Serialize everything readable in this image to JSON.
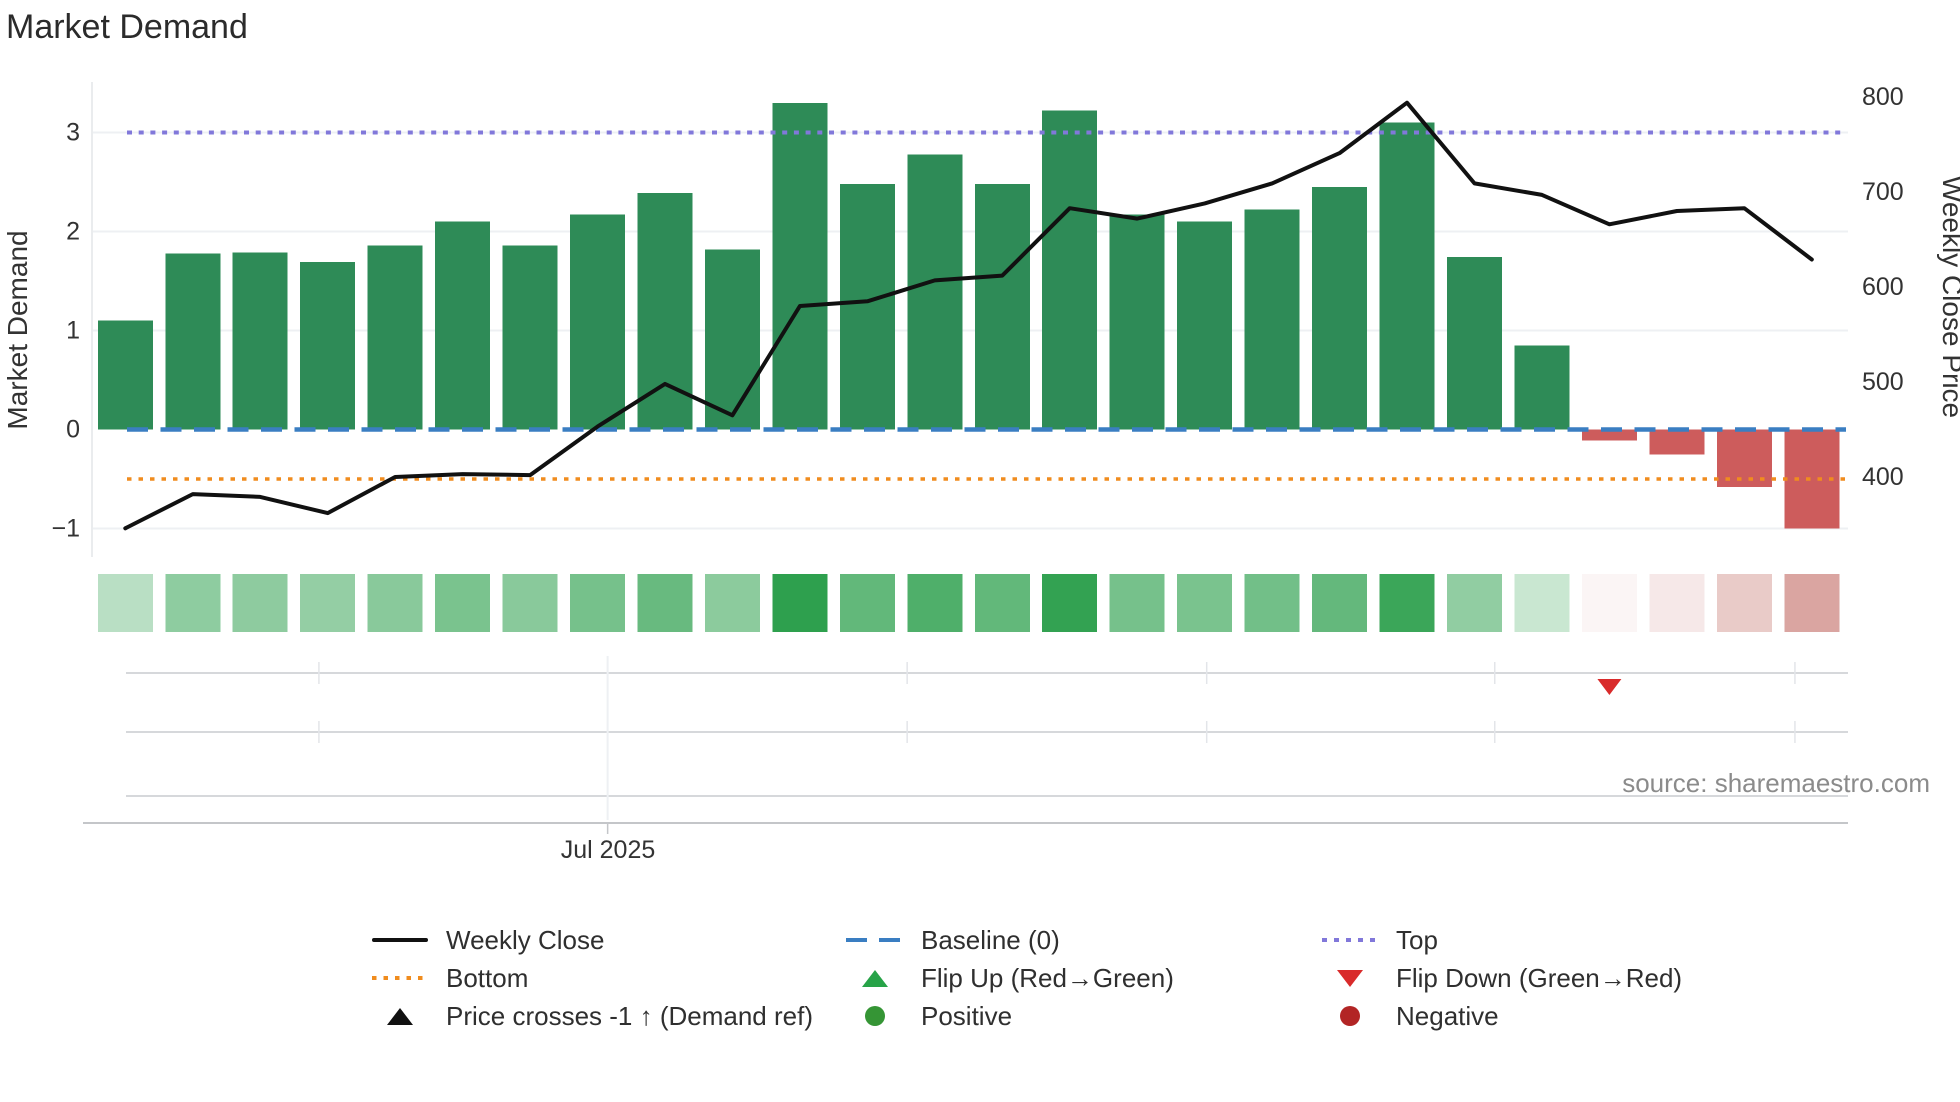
{
  "title": "Market Demand",
  "y_left": {
    "title": "Market Demand",
    "tick_labels": [
      "3",
      "2",
      "1",
      "0",
      "−1"
    ],
    "tick_values": [
      3,
      2,
      1,
      0,
      -1
    ]
  },
  "y_right": {
    "title": "Weekly Close Price",
    "tick_labels": [
      "800",
      "700",
      "600",
      "500",
      "400"
    ],
    "tick_values": [
      800,
      700,
      600,
      500,
      400
    ]
  },
  "x_axis": {
    "tick_label": "Jul 2025"
  },
  "source": "source: sharemaestro.com",
  "legend": {
    "items": [
      {
        "label": "Weekly Close",
        "symbol": "black-line"
      },
      {
        "label": "Bottom",
        "symbol": "orange-dotted-line"
      },
      {
        "label": "Price crosses -1 ↑ (Demand ref)",
        "symbol": "black-up-triangle"
      },
      {
        "label": "Baseline (0)",
        "symbol": "blue-dashed-line"
      },
      {
        "label": "Flip Up (Red→Green)",
        "symbol": "green-up-triangle"
      },
      {
        "label": "Positive",
        "symbol": "green-circle"
      },
      {
        "label": "Top",
        "symbol": "purple-dotted-line"
      },
      {
        "label": "Flip Down (Green→Red)",
        "symbol": "red-down-triangle"
      },
      {
        "label": "Negative",
        "symbol": "dark-red-circle"
      }
    ]
  },
  "colors": {
    "bar_positive": "#2e8b57",
    "bar_negative": "#cd5c5c",
    "price_line": "#111111",
    "baseline_line": "#3a7ec2",
    "top_line": "#8178da",
    "bottom_line": "#f08c1e",
    "flip_down_marker": "#d92b2b",
    "heat_green": "#2ea04e",
    "heat_red": "#b44a43",
    "grid": "#eef0f3",
    "panel_line": "#d6d8db",
    "axis_line": "#c4c6c9",
    "tick_text": "#333333",
    "title_text": "#2b2b2b",
    "source_text": "#8b8b8b"
  },
  "chart_data": {
    "type": "bar+line combo with heatmap strip and marker panel",
    "x": {
      "unit": "week",
      "n_points": 26,
      "visible_tick_label": "Jul 2025",
      "month_tick_week_positions": [
        2.87,
        7.15,
        11.59,
        16.03,
        20.3,
        24.75
      ],
      "labeled_month_tick_index": 1
    },
    "series": [
      {
        "name": "Market Demand",
        "type": "bar",
        "yaxis": "left",
        "values": [
          1.1,
          1.78,
          1.79,
          1.69,
          1.86,
          2.1,
          1.86,
          2.17,
          2.39,
          1.82,
          3.3,
          2.48,
          2.78,
          2.48,
          3.22,
          2.17,
          2.1,
          2.22,
          2.45,
          3.1,
          1.74,
          0.85,
          -0.11,
          -0.25,
          -0.58,
          -1.0
        ]
      },
      {
        "name": "Weekly Close",
        "type": "line",
        "yaxis": "right",
        "values": [
          346,
          382,
          379,
          362,
          400,
          403,
          402,
          453,
          498,
          465,
          580,
          585,
          607,
          612,
          683,
          672,
          688,
          709,
          741,
          794,
          709,
          697,
          666,
          680,
          683,
          629
        ]
      }
    ],
    "reference_lines": [
      {
        "name": "Baseline (0)",
        "axis": "left",
        "value": 0,
        "style": "long-dash"
      },
      {
        "name": "Top",
        "axis": "left",
        "value": 3,
        "style": "dot"
      },
      {
        "name": "Bottom",
        "axis": "left",
        "value": -0.5,
        "style": "dot"
      }
    ],
    "heatmap": {
      "description": "weekly demand intensity strip, green positive / red negative",
      "values": [
        1.1,
        1.78,
        1.79,
        1.69,
        1.86,
        2.1,
        1.86,
        2.17,
        2.39,
        1.82,
        3.3,
        2.48,
        2.78,
        2.48,
        3.22,
        2.17,
        2.1,
        2.22,
        2.45,
        3.1,
        1.74,
        0.85,
        -0.11,
        -0.25,
        -0.58,
        -1.0
      ]
    },
    "markers": [
      {
        "name": "Flip Down (Green→Red)",
        "x_index": 22
      }
    ],
    "y_left_range": [
      -1.3,
      3.75
    ],
    "y_right_range": [
      315,
      840
    ],
    "grid": "on (horizontal, light)",
    "legend_position": "bottom"
  }
}
